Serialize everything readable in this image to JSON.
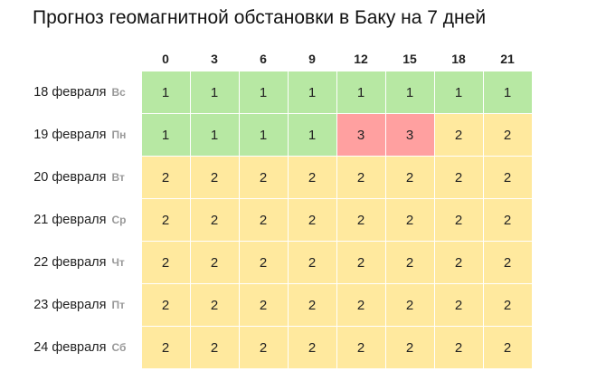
{
  "title": "Прогноз геомагнитной обстановки в Баку на 7 дней",
  "hours": [
    "0",
    "3",
    "6",
    "9",
    "12",
    "15",
    "18",
    "21"
  ],
  "colors": {
    "1": "#b7e8a3",
    "2": "#ffe99e",
    "3": "#ffa0a0"
  },
  "rows": [
    {
      "date": "18 февраля",
      "weekday": "Вс",
      "values": [
        1,
        1,
        1,
        1,
        1,
        1,
        1,
        1
      ]
    },
    {
      "date": "19 февраля",
      "weekday": "Пн",
      "values": [
        1,
        1,
        1,
        1,
        3,
        3,
        2,
        2
      ]
    },
    {
      "date": "20 февраля",
      "weekday": "Вт",
      "values": [
        2,
        2,
        2,
        2,
        2,
        2,
        2,
        2
      ]
    },
    {
      "date": "21 февраля",
      "weekday": "Ср",
      "values": [
        2,
        2,
        2,
        2,
        2,
        2,
        2,
        2
      ]
    },
    {
      "date": "22 февраля",
      "weekday": "Чт",
      "values": [
        2,
        2,
        2,
        2,
        2,
        2,
        2,
        2
      ]
    },
    {
      "date": "23 февраля",
      "weekday": "Пт",
      "values": [
        2,
        2,
        2,
        2,
        2,
        2,
        2,
        2
      ]
    },
    {
      "date": "24 февраля",
      "weekday": "Сб",
      "values": [
        2,
        2,
        2,
        2,
        2,
        2,
        2,
        2
      ]
    }
  ]
}
